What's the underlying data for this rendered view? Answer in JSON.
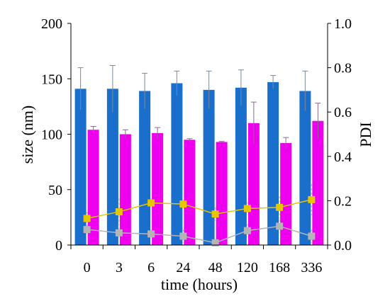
{
  "chart_data": {
    "type": "bar",
    "xlabel": "time (hours)",
    "ylabel": "size (nm)",
    "y2label": "PDI",
    "categories": [
      "0",
      "3",
      "6",
      "24",
      "48",
      "120",
      "168",
      "336"
    ],
    "ylim": [
      0,
      200
    ],
    "y2lim": [
      0,
      1.0
    ],
    "yticks": [
      "0",
      "50",
      "100",
      "150",
      "200"
    ],
    "y2ticks": [
      "0.0",
      "0.2",
      "0.4",
      "0.6",
      "0.8",
      "1.0"
    ],
    "grid": false,
    "bar_series": [
      {
        "color": "#1a6fcc",
        "values": [
          141,
          141,
          139,
          146,
          140,
          142,
          147,
          139
        ],
        "errors": [
          19,
          21,
          16,
          11,
          17,
          16,
          6,
          18
        ]
      },
      {
        "color": "#ee00ee",
        "values": [
          104,
          100,
          101,
          95,
          93,
          110,
          92,
          112
        ],
        "errors": [
          3,
          4,
          5,
          1,
          0.5,
          19,
          5,
          16
        ]
      }
    ],
    "line_series": [
      {
        "color": "#e6c600",
        "axis": "right",
        "values": [
          0.12,
          0.15,
          0.19,
          0.185,
          0.14,
          0.165,
          0.17,
          0.205
        ],
        "errors": [
          0.03,
          0.06,
          0.02,
          0.02,
          0.03,
          0.03,
          0.05,
          0.07
        ]
      },
      {
        "color": "#b4b4b4",
        "axis": "right",
        "values": [
          0.07,
          0.055,
          0.05,
          0.04,
          0.01,
          0.065,
          0.085,
          0.04
        ],
        "errors": [
          0.02,
          0.02,
          0.02,
          0.03,
          0.01,
          0.03,
          0.03,
          0.03
        ]
      }
    ]
  }
}
